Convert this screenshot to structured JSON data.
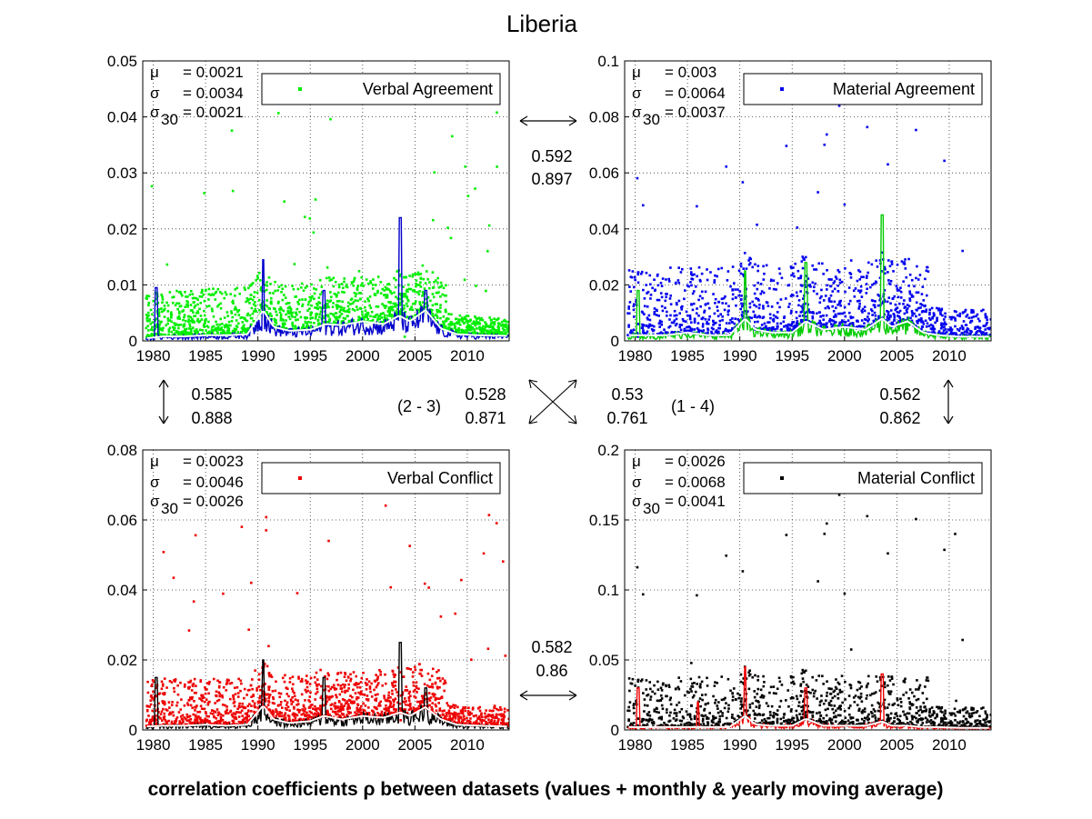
{
  "title": "Liberia",
  "caption": "correlation coefficients ρ between datasets (values + monthly & yearly moving average)",
  "correlations": {
    "top_pair": [
      "0.592",
      "0.897"
    ],
    "left_pair": [
      "0.585",
      "0.888"
    ],
    "right_pair": [
      "0.562",
      "0.862"
    ],
    "bottom_pair": [
      "0.582",
      "0.86"
    ],
    "diag_2_3": [
      "0.528",
      "0.871"
    ],
    "diag_1_4": [
      "0.53",
      "0.761"
    ],
    "label_2_3": "(2 - 3)",
    "label_1_4": "(1 - 4)"
  },
  "chart_data": [
    {
      "type": "scatter",
      "legend": "Verbal Agreement",
      "color": "#00ee00",
      "monthly_color": "#0000cc",
      "yearly_color": "#ffffff",
      "xlim": [
        1979,
        2014
      ],
      "ylim": [
        0,
        0.05
      ],
      "xticks": [
        "1980",
        "1985",
        "1990",
        "1995",
        "2000",
        "2005",
        "2010"
      ],
      "yticks": [
        "0",
        "0.01",
        "0.02",
        "0.03",
        "0.04",
        "0.05"
      ],
      "stats": {
        "mu": "= 0.0021",
        "sigma": "= 0.0034",
        "sigma30": "= 0.0021"
      },
      "yearly_avg_x": [
        1979.5,
        1981,
        1983,
        1985,
        1987,
        1989,
        1990.5,
        1991.5,
        1993,
        1995,
        1996.5,
        1998,
        2000,
        2002,
        2003.5,
        2004.5,
        2006,
        2007.5,
        2009,
        2011,
        2013.5
      ],
      "yearly_avg_y": [
        0.0005,
        0.0008,
        0.0008,
        0.001,
        0.001,
        0.0012,
        0.0055,
        0.0025,
        0.0018,
        0.002,
        0.003,
        0.0028,
        0.0035,
        0.003,
        0.0045,
        0.0035,
        0.0055,
        0.0022,
        0.0012,
        0.001,
        0.0009
      ],
      "spikes_x": [
        1980.3,
        1990.5,
        1996.3,
        2003.6,
        2006.0
      ],
      "spikes_y": [
        0.0095,
        0.0145,
        0.009,
        0.022,
        0.009
      ],
      "noise_scale": 0.0028,
      "density": 1.0
    },
    {
      "type": "scatter",
      "legend": "Material Agreement",
      "color": "#0000ee",
      "monthly_color": "#00cc00",
      "yearly_color": "#ffffff",
      "xlim": [
        1979,
        2014
      ],
      "ylim": [
        0,
        0.1
      ],
      "xticks": [
        "1980",
        "1985",
        "1990",
        "1995",
        "2000",
        "2005",
        "2010"
      ],
      "yticks": [
        "0",
        "0.02",
        "0.04",
        "0.06",
        "0.08",
        "0.1"
      ],
      "stats": {
        "mu": "= 0.003",
        "sigma": "= 0.0064",
        "sigma30": "= 0.0037"
      },
      "yearly_avg_x": [
        1979.5,
        1981,
        1983,
        1985,
        1987,
        1989,
        1990.5,
        1991.5,
        1993,
        1995,
        1996.3,
        1998,
        2000,
        2002,
        2003.6,
        2004.5,
        2006,
        2007.5,
        2009,
        2011,
        2013.5
      ],
      "yearly_avg_y": [
        0.002,
        0.002,
        0.002,
        0.003,
        0.002,
        0.002,
        0.008,
        0.004,
        0.003,
        0.003,
        0.007,
        0.004,
        0.005,
        0.004,
        0.008,
        0.005,
        0.007,
        0.003,
        0.002,
        0.0015,
        0.0015
      ],
      "spikes_x": [
        1980.3,
        1990.5,
        1996.3,
        2003.6
      ],
      "spikes_y": [
        0.018,
        0.025,
        0.028,
        0.045
      ],
      "noise_scale": 0.008,
      "density": 0.8
    },
    {
      "type": "scatter",
      "legend": "Verbal Conflict",
      "color": "#ee0000",
      "monthly_color": "#000000",
      "yearly_color": "#ffffff",
      "xlim": [
        1979,
        2014
      ],
      "ylim": [
        0,
        0.08
      ],
      "xticks": [
        "1980",
        "1985",
        "1990",
        "1995",
        "2000",
        "2005",
        "2010"
      ],
      "yticks": [
        "0",
        "0.02",
        "0.04",
        "0.06",
        "0.08"
      ],
      "stats": {
        "mu": "= 0.0023",
        "sigma": "= 0.0046",
        "sigma30": "= 0.0026"
      },
      "yearly_avg_x": [
        1979.5,
        1981,
        1983,
        1985,
        1987,
        1989,
        1990.5,
        1991.5,
        1993,
        1995,
        1996.3,
        1998,
        2000,
        2002,
        2003.6,
        2004.5,
        2006,
        2007.5,
        2009,
        2011,
        2013.5
      ],
      "yearly_avg_y": [
        0.001,
        0.0012,
        0.0012,
        0.0015,
        0.0012,
        0.0015,
        0.007,
        0.003,
        0.002,
        0.0025,
        0.004,
        0.003,
        0.004,
        0.0035,
        0.005,
        0.004,
        0.0065,
        0.003,
        0.0015,
        0.0012,
        0.001
      ],
      "spikes_x": [
        1980.3,
        1990.5,
        1996.3,
        2003.6,
        2006.0
      ],
      "spikes_y": [
        0.015,
        0.02,
        0.015,
        0.025,
        0.012
      ],
      "noise_scale": 0.0045,
      "density": 1.0
    },
    {
      "type": "scatter",
      "legend": "Material Conflict",
      "color": "#000000",
      "monthly_color": "#ee0000",
      "yearly_color": "#ffffff",
      "xlim": [
        1979,
        2014
      ],
      "ylim": [
        0,
        0.2
      ],
      "xticks": [
        "1980",
        "1985",
        "1990",
        "1995",
        "2000",
        "2005",
        "2010"
      ],
      "yticks": [
        "0",
        "0.05",
        "0.1",
        "0.15",
        "0.2"
      ],
      "stats": {
        "mu": "= 0.0026",
        "sigma": "= 0.0068",
        "sigma30": "= 0.0041"
      },
      "yearly_avg_x": [
        1979.5,
        1981,
        1983,
        1985,
        1987,
        1989,
        1990.5,
        1991.5,
        1993,
        1995,
        1996.3,
        1998,
        2000,
        2002,
        2003.6,
        2004.5,
        2006,
        2007.5,
        2009,
        2011,
        2013.5
      ],
      "yearly_avg_y": [
        0.002,
        0.002,
        0.002,
        0.002,
        0.002,
        0.002,
        0.01,
        0.004,
        0.003,
        0.003,
        0.008,
        0.003,
        0.003,
        0.003,
        0.006,
        0.003,
        0.003,
        0.002,
        0.002,
        0.0015,
        0.0015
      ],
      "spikes_x": [
        1980.3,
        1986,
        1990.5,
        1996.3,
        2003.6
      ],
      "spikes_y": [
        0.03,
        0.02,
        0.045,
        0.03,
        0.04
      ],
      "noise_scale": 0.012,
      "density": 0.7
    }
  ]
}
